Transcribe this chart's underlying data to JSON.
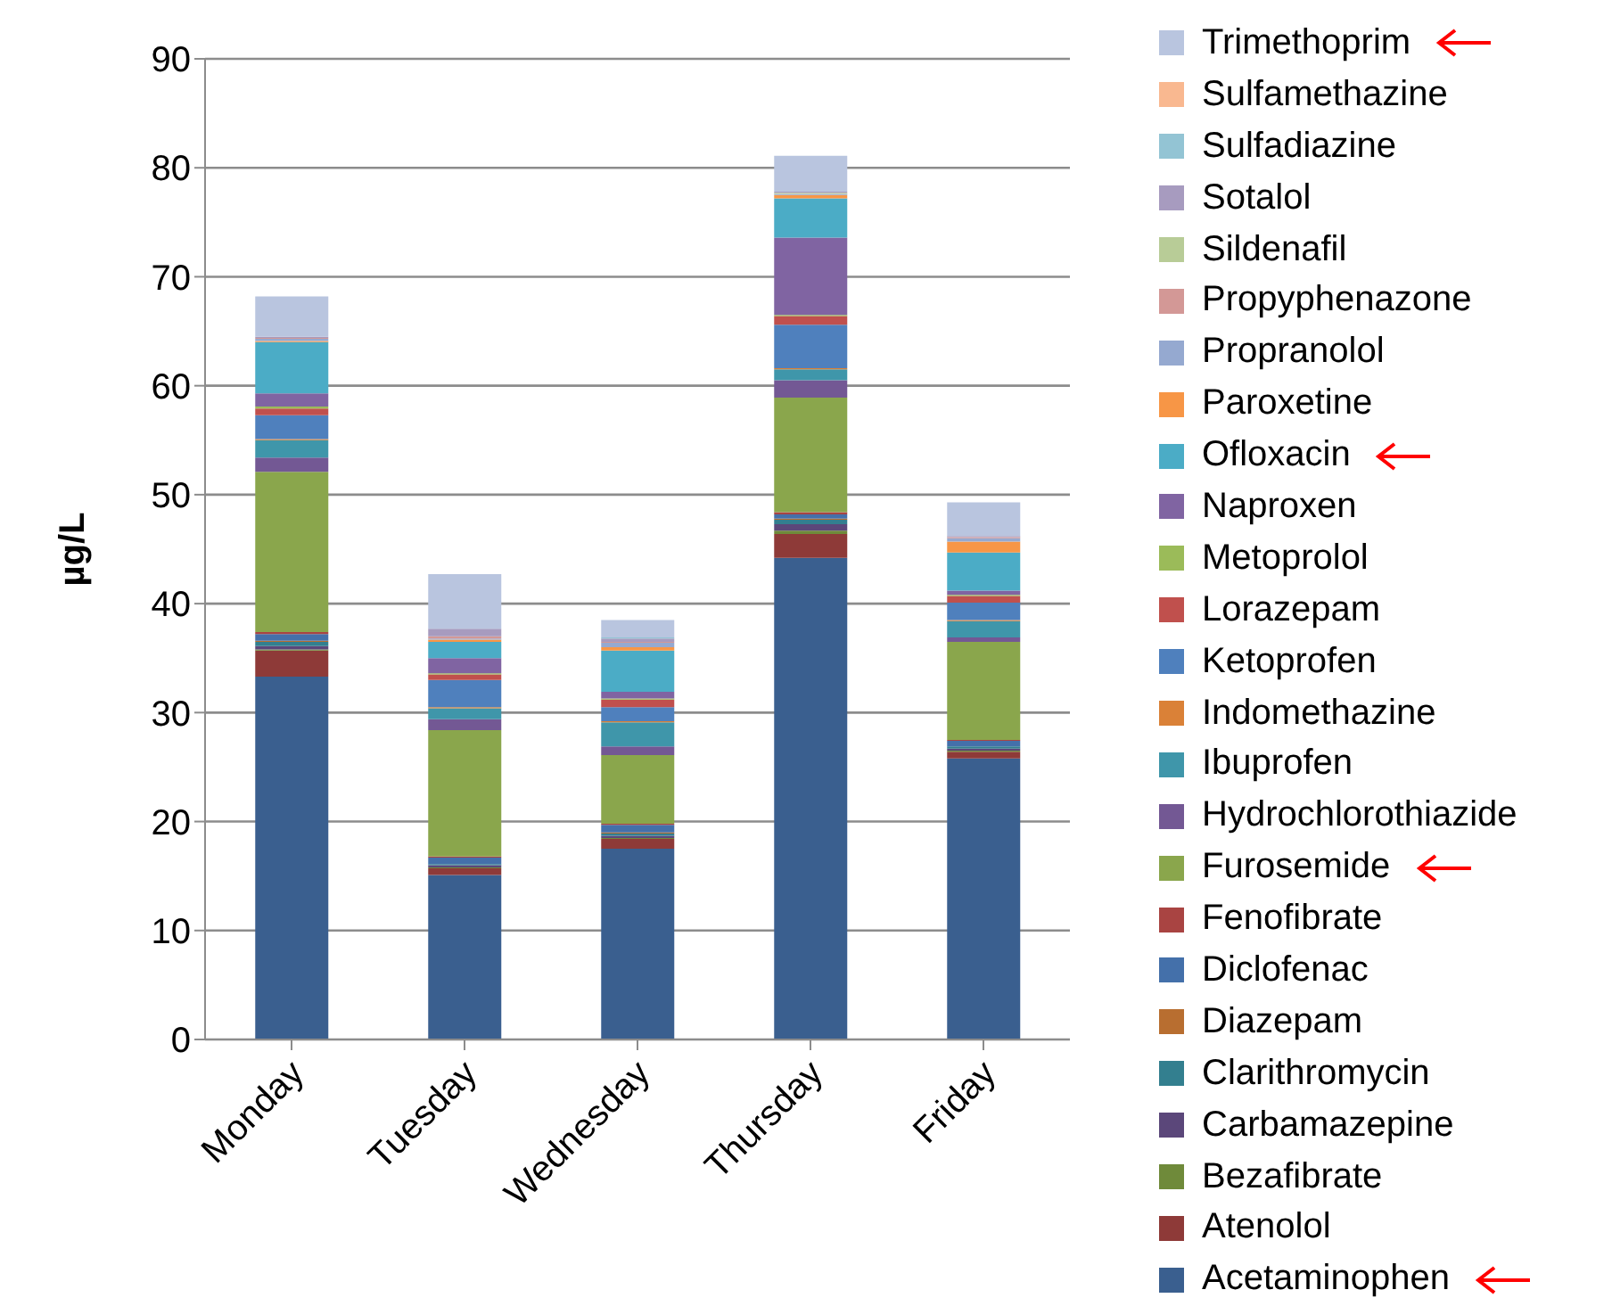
{
  "chart_data": {
    "type": "bar",
    "stacked": true,
    "ylabel": "µg/L",
    "categories": [
      "Monday",
      "Tuesday",
      "Wednesday",
      "Thursday",
      "Friday"
    ],
    "ylim": [
      0,
      90
    ],
    "yticks": [
      0,
      10,
      20,
      30,
      40,
      50,
      60,
      70,
      80,
      90
    ],
    "grid": "y",
    "legend": "right",
    "series": [
      {
        "name": "Acetaminophen",
        "color": "#3a5f8f",
        "values": [
          33.3,
          15.1,
          17.5,
          44.2,
          25.8
        ]
      },
      {
        "name": "Atenolol",
        "color": "#8e3a38",
        "values": [
          2.4,
          0.6,
          0.9,
          2.2,
          0.6
        ]
      },
      {
        "name": "Bezafibrate",
        "color": "#6f8a3a",
        "values": [
          0.1,
          0.1,
          0.1,
          0.3,
          0.1
        ]
      },
      {
        "name": "Carbamazepine",
        "color": "#5b477a",
        "values": [
          0.3,
          0.2,
          0.2,
          0.6,
          0.2
        ]
      },
      {
        "name": "Clarithromycin",
        "color": "#337f8f",
        "values": [
          0.4,
          0.1,
          0.2,
          0.4,
          0.2
        ]
      },
      {
        "name": "Diazepam",
        "color": "#b86e30",
        "values": [
          0.1,
          0,
          0.1,
          0.1,
          0
        ]
      },
      {
        "name": "Diclofenac",
        "color": "#4470aa",
        "values": [
          0.6,
          0.6,
          0.7,
          0.4,
          0.5
        ]
      },
      {
        "name": "Fenofibrate",
        "color": "#a94442",
        "values": [
          0.2,
          0.1,
          0.1,
          0.2,
          0.1
        ]
      },
      {
        "name": "Furosemide",
        "color": "#8aa64c",
        "values": [
          14.7,
          11.6,
          6.3,
          10.5,
          9.0
        ]
      },
      {
        "name": "Hydrochlorothiazide",
        "color": "#735894",
        "values": [
          1.3,
          1.0,
          0.8,
          1.6,
          0.4
        ]
      },
      {
        "name": "Ibuprofen",
        "color": "#3f96aa",
        "values": [
          1.6,
          1.0,
          2.2,
          1.0,
          1.5
        ]
      },
      {
        "name": "Indomethazine",
        "color": "#da8137",
        "values": [
          0.1,
          0.1,
          0.1,
          0.1,
          0.1
        ]
      },
      {
        "name": "Ketoprofen",
        "color": "#4f80bd",
        "values": [
          2.2,
          2.5,
          1.3,
          4.0,
          1.6
        ]
      },
      {
        "name": "Lorazepam",
        "color": "#c0504d",
        "values": [
          0.6,
          0.5,
          0.7,
          0.8,
          0.6
        ]
      },
      {
        "name": "Metoprolol",
        "color": "#9bbb59",
        "values": [
          0.2,
          0.1,
          0.1,
          0.1,
          0.1
        ]
      },
      {
        "name": "Naproxen",
        "color": "#8064a2",
        "values": [
          1.2,
          1.4,
          0.6,
          7.1,
          0.4
        ]
      },
      {
        "name": "Ofloxacin",
        "color": "#4bacc6",
        "values": [
          4.7,
          1.5,
          3.8,
          3.6,
          3.5
        ]
      },
      {
        "name": "Paroxetine",
        "color": "#f79646",
        "values": [
          0.1,
          0.2,
          0.3,
          0.3,
          1.0
        ]
      },
      {
        "name": "Propranolol",
        "color": "#95a9d0",
        "values": [
          0.2,
          0.1,
          0.4,
          0.1,
          0.3
        ]
      },
      {
        "name": "Propyphenazone",
        "color": "#d39896",
        "values": [
          0.1,
          0.2,
          0.1,
          0,
          0.1
        ]
      },
      {
        "name": "Sildenafil",
        "color": "#b8cc97",
        "values": [
          0,
          0,
          0,
          0.1,
          0
        ]
      },
      {
        "name": "Sotalol",
        "color": "#a79bbf",
        "values": [
          0.1,
          0.7,
          0.3,
          0.1,
          0.1
        ]
      },
      {
        "name": "Sulfadiazine",
        "color": "#93c4d4",
        "values": [
          0,
          0,
          0.1,
          0,
          0
        ]
      },
      {
        "name": "Sulfamethazine",
        "color": "#f9b890",
        "values": [
          0,
          0,
          0,
          0,
          0
        ]
      },
      {
        "name": "Trimethoprim",
        "color": "#b9c5df",
        "values": [
          3.7,
          5.0,
          1.6,
          3.3,
          3.1
        ]
      }
    ]
  }
}
